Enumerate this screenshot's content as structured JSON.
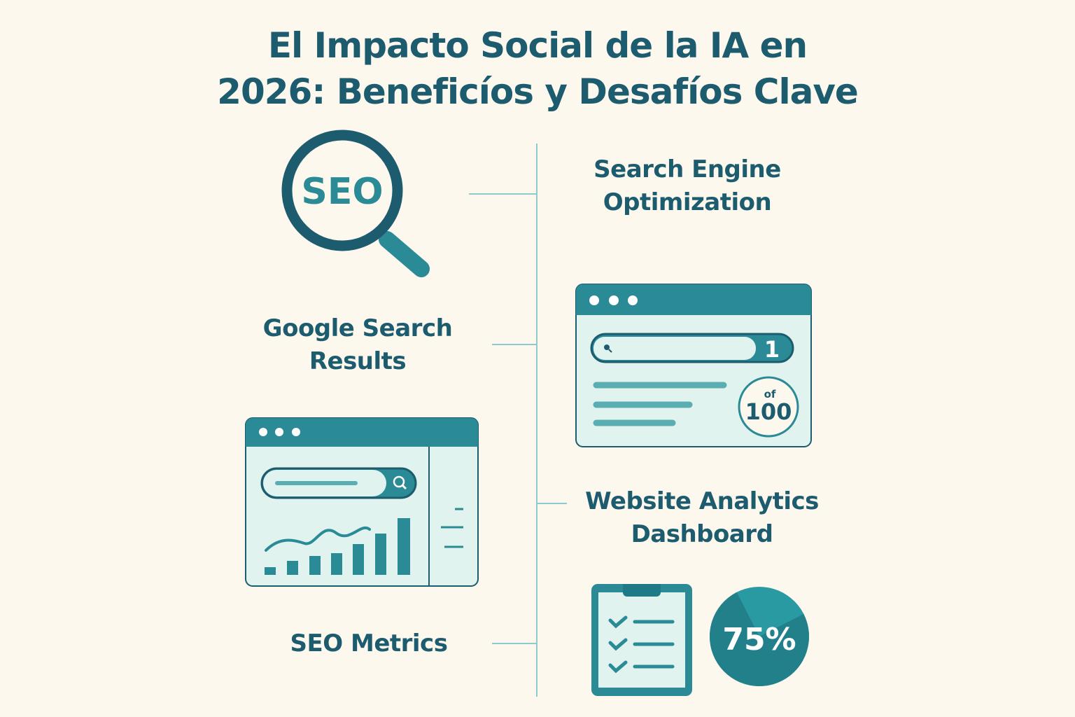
{
  "title": {
    "line1": "El Impacto Social de la IA en",
    "line2": "2026: Beneficíos y Desafíos Clave"
  },
  "labels": {
    "seo": [
      "Search Engine",
      "Optimization"
    ],
    "google": [
      "Google Search",
      "Results"
    ],
    "analytics": [
      "Website Analytics",
      "Dashboard"
    ],
    "metrics": "SEO Metrics"
  },
  "icons": {
    "magnifier_text": "SEO",
    "rank": {
      "position": "1",
      "of_label": "of",
      "total": "100"
    },
    "progress": {
      "label": "75%",
      "percent": 75
    }
  },
  "colors": {
    "background": "#fcf8ee",
    "dark_teal": "#1d5b6e",
    "teal": "#2a8a96",
    "light_panel": "#e1f3ef",
    "connector": "#8fcbcc"
  }
}
